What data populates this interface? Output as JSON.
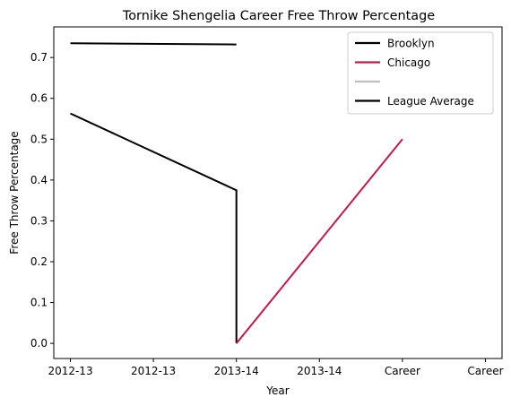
{
  "chart_data": {
    "type": "line",
    "title": "Tornike Shengelia Career Free Throw Percentage",
    "xlabel": "Year",
    "ylabel": "Free Throw Percentage",
    "x_tick_labels": [
      "2012-13",
      "2012-13",
      "2013-14",
      "2013-14",
      "Career",
      "Career"
    ],
    "y_ticks": [
      0.0,
      0.1,
      0.2,
      0.3,
      0.4,
      0.5,
      0.6,
      0.7
    ],
    "xlim": [
      -0.2,
      5.2
    ],
    "ylim": [
      -0.037,
      0.775
    ],
    "legend_position": "top-right",
    "grid": false,
    "series": [
      {
        "name": "Brooklyn",
        "color": "#000000",
        "points": [
          [
            0,
            0.563
          ],
          [
            2,
            0.375
          ],
          [
            2,
            0.0
          ]
        ]
      },
      {
        "name": "Chicago",
        "color": "#c8174a",
        "points": [
          [
            2,
            0.0
          ],
          [
            4,
            0.5
          ]
        ]
      },
      {
        "name": "",
        "color": "#bfbfbf",
        "points": []
      },
      {
        "name": "League Average",
        "color": "#000000",
        "points": [
          [
            0,
            0.735
          ],
          [
            2,
            0.732
          ]
        ]
      }
    ]
  }
}
